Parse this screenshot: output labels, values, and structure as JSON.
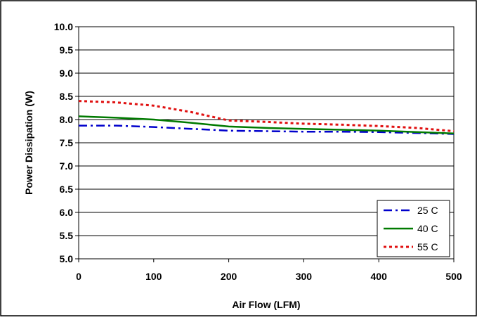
{
  "chart_data": {
    "type": "line",
    "title": "",
    "xlabel": "Air Flow (LFM)",
    "ylabel": "Power Dissipation (W)",
    "xlim": [
      0,
      500
    ],
    "ylim": [
      5.0,
      10.0
    ],
    "x_ticks": [
      "0",
      "100",
      "200",
      "300",
      "400",
      "500"
    ],
    "y_ticks": [
      "5.0",
      "5.5",
      "6.0",
      "6.5",
      "7.0",
      "7.5",
      "8.0",
      "8.5",
      "9.0",
      "9.5",
      "10.0"
    ],
    "grid": "horizontal",
    "legend_position": "bottom-right",
    "x": [
      0,
      50,
      100,
      150,
      200,
      250,
      300,
      350,
      400,
      450,
      500
    ],
    "series": [
      {
        "name": "25 C",
        "color": "#0000cc",
        "dash": "dash-dot",
        "values": [
          7.87,
          7.87,
          7.84,
          7.8,
          7.76,
          7.75,
          7.74,
          7.74,
          7.73,
          7.71,
          7.69
        ]
      },
      {
        "name": "40 C",
        "color": "#007a00",
        "dash": "solid",
        "values": [
          8.07,
          8.04,
          8.0,
          7.93,
          7.85,
          7.82,
          7.8,
          7.78,
          7.76,
          7.73,
          7.7
        ]
      },
      {
        "name": "55 C",
        "color": "#e01010",
        "dash": "dotted",
        "values": [
          8.4,
          8.37,
          8.3,
          8.16,
          7.98,
          7.95,
          7.91,
          7.89,
          7.86,
          7.82,
          7.75
        ]
      }
    ]
  }
}
